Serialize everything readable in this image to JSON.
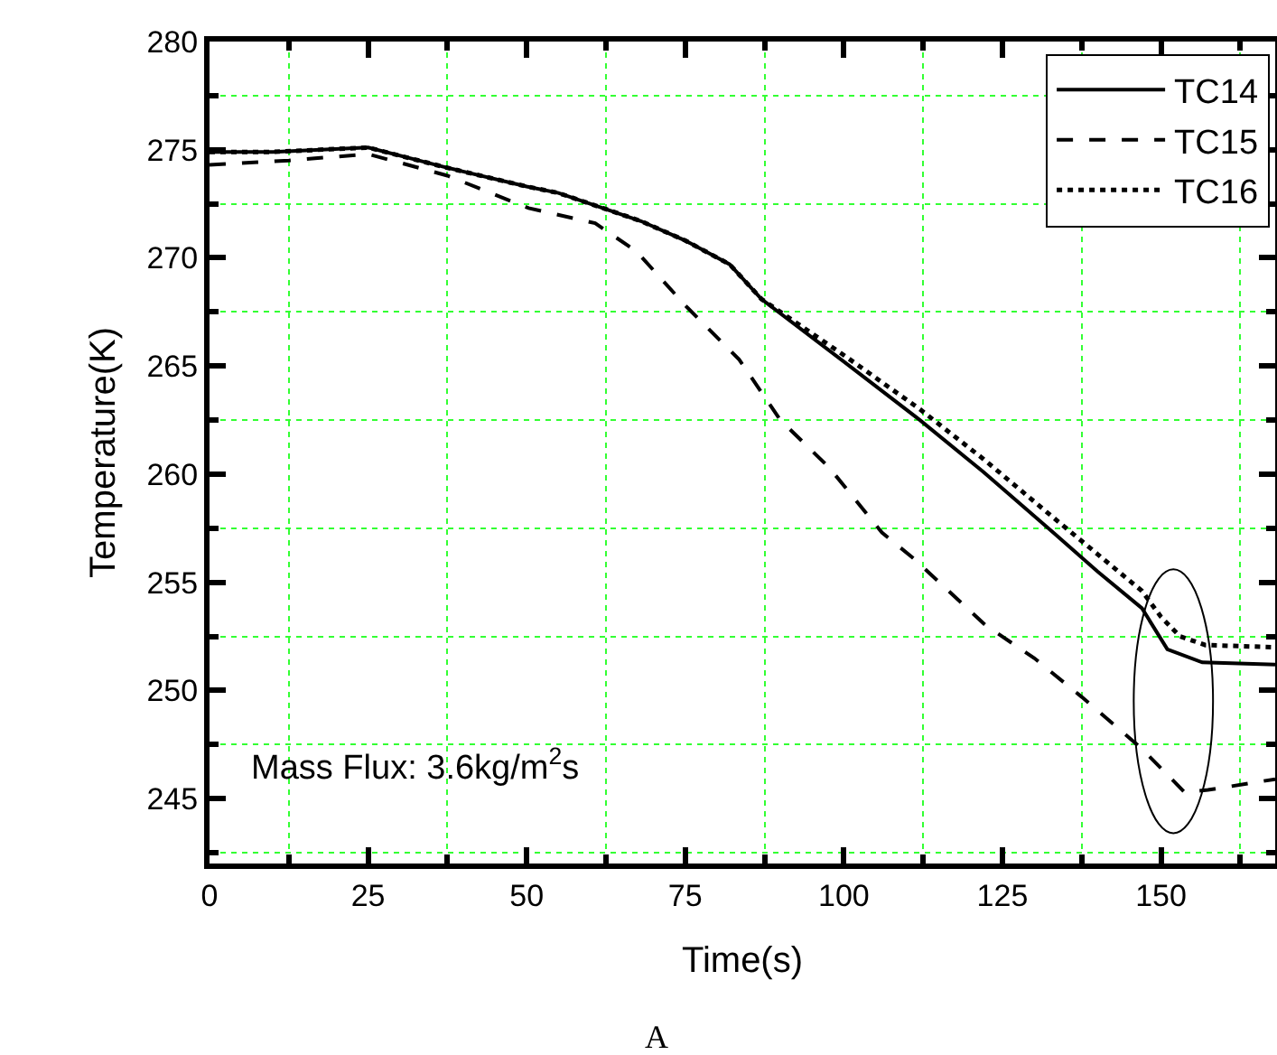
{
  "chart_data": {
    "type": "line",
    "xlabel": "Time(s)",
    "ylabel": "Temperature(K)",
    "annotations": [
      "Mass Flux: 3.6kg/m$^{2}$s",
      "A"
    ],
    "xlim": [
      0,
      168
    ],
    "ylim": [
      242,
      280
    ],
    "xticks": [
      0,
      {
        "value": 12.5,
        "label": null
      },
      25,
      {
        "value": 37.5,
        "label": null
      },
      50,
      {
        "value": 62.5,
        "label": null
      },
      75,
      {
        "value": 87.5,
        "label": null
      },
      100,
      {
        "value": 112.5,
        "label": null
      },
      125,
      {
        "value": 137.5,
        "label": null
      },
      150,
      {
        "value": 162.5,
        "label": null
      }
    ],
    "yticks": [
      {
        "value": 242.5,
        "label": null
      },
      245,
      {
        "value": 247.5,
        "label": null
      },
      250,
      {
        "value": 252.5,
        "label": null
      },
      255,
      {
        "value": 257.5,
        "label": null
      },
      260,
      {
        "value": 262.5,
        "label": null
      },
      265,
      {
        "value": 267.5,
        "label": null
      },
      270,
      {
        "value": 272.5,
        "label": null
      },
      275,
      {
        "value": 277.5,
        "label": null
      },
      280
    ],
    "grid": true,
    "legend": "top right",
    "marker": "none",
    "series": [
      {
        "name": "TC14",
        "color": "#000000",
        "line_style": "solid",
        "x": [
          0,
          10,
          25,
          37,
          50,
          55,
          62,
          68,
          75,
          82,
          87,
          100,
          112,
          122,
          133,
          140,
          147,
          151,
          156.5,
          168
        ],
        "values": [
          274.9,
          274.9,
          275.1,
          274.2,
          273.3,
          273,
          272.3,
          271.7,
          270.8,
          269.7,
          268.1,
          265.2,
          262.5,
          260.1,
          257.3,
          255.5,
          253.8,
          251.9,
          251.3,
          251.2
        ]
      },
      {
        "name": "TC15",
        "color": "#000000",
        "line_style": "dashed",
        "x": [
          0,
          12.5,
          25,
          37.5,
          50.3,
          60.8,
          67.3,
          75,
          83.5,
          90,
          97.7,
          106,
          111,
          122.4,
          130,
          137.5,
          147,
          153.7,
          157.4,
          168
        ],
        "values": [
          274.3,
          274.5,
          274.8,
          273.8,
          272.3,
          271.6,
          270.3,
          267.8,
          265.3,
          262.5,
          260.3,
          257.3,
          256.1,
          253,
          251.5,
          249.7,
          247.3,
          245.3,
          245.4,
          245.9
        ]
      },
      {
        "name": "TC16",
        "color": "#000000",
        "line_style": "dotted",
        "x": [
          0,
          10,
          25,
          37,
          50,
          55,
          62,
          68,
          75,
          82,
          87,
          100,
          112,
          122,
          133,
          140,
          147,
          150,
          153,
          157,
          168
        ],
        "values": [
          274.9,
          274.9,
          275.1,
          274.2,
          273.3,
          273,
          272.3,
          271.7,
          270.8,
          269.7,
          268.1,
          265.5,
          263,
          260.7,
          258,
          256.3,
          254.6,
          253.4,
          252.5,
          252.1,
          252
        ]
      }
    ]
  }
}
